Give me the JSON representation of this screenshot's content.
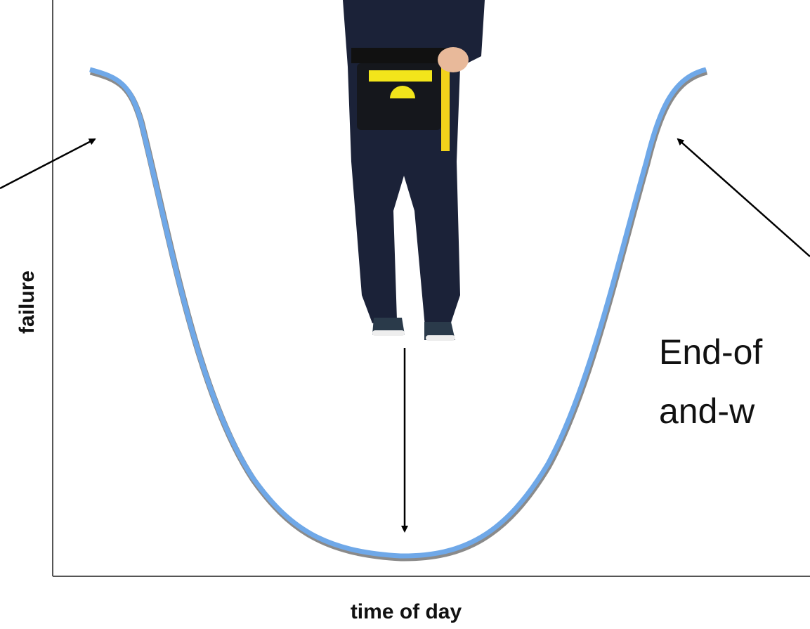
{
  "diagram": {
    "y_axis_label": "failure",
    "x_axis_label": "time of day",
    "callout_lines": [
      "End-of",
      "and-w"
    ]
  }
}
